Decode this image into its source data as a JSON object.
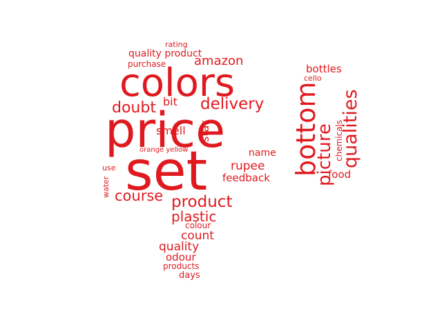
{
  "word_cloud": {
    "color": "#e0191f",
    "words": [
      {
        "text": "set"
      },
      {
        "text": "price"
      },
      {
        "text": "colors"
      },
      {
        "text": "bottom"
      },
      {
        "text": "qualities"
      },
      {
        "text": "picture"
      },
      {
        "text": "product"
      },
      {
        "text": "delivery"
      },
      {
        "text": "doubt"
      },
      {
        "text": "course"
      },
      {
        "text": "plastic"
      },
      {
        "text": "amazon"
      },
      {
        "text": "quality product"
      },
      {
        "text": "bottles"
      },
      {
        "text": "rupee"
      },
      {
        "text": "feedback"
      },
      {
        "text": "count"
      },
      {
        "text": "quality"
      },
      {
        "text": "smell"
      },
      {
        "text": "star"
      },
      {
        "text": "bit"
      },
      {
        "text": "name"
      },
      {
        "text": "food"
      },
      {
        "text": "odour"
      },
      {
        "text": "purchase"
      },
      {
        "text": "chemicals"
      },
      {
        "text": "cello"
      },
      {
        "text": "rating"
      },
      {
        "text": "colour"
      },
      {
        "text": "products"
      },
      {
        "text": "days"
      },
      {
        "text": "orange yellow"
      },
      {
        "text": "use"
      },
      {
        "text": "water"
      }
    ]
  }
}
